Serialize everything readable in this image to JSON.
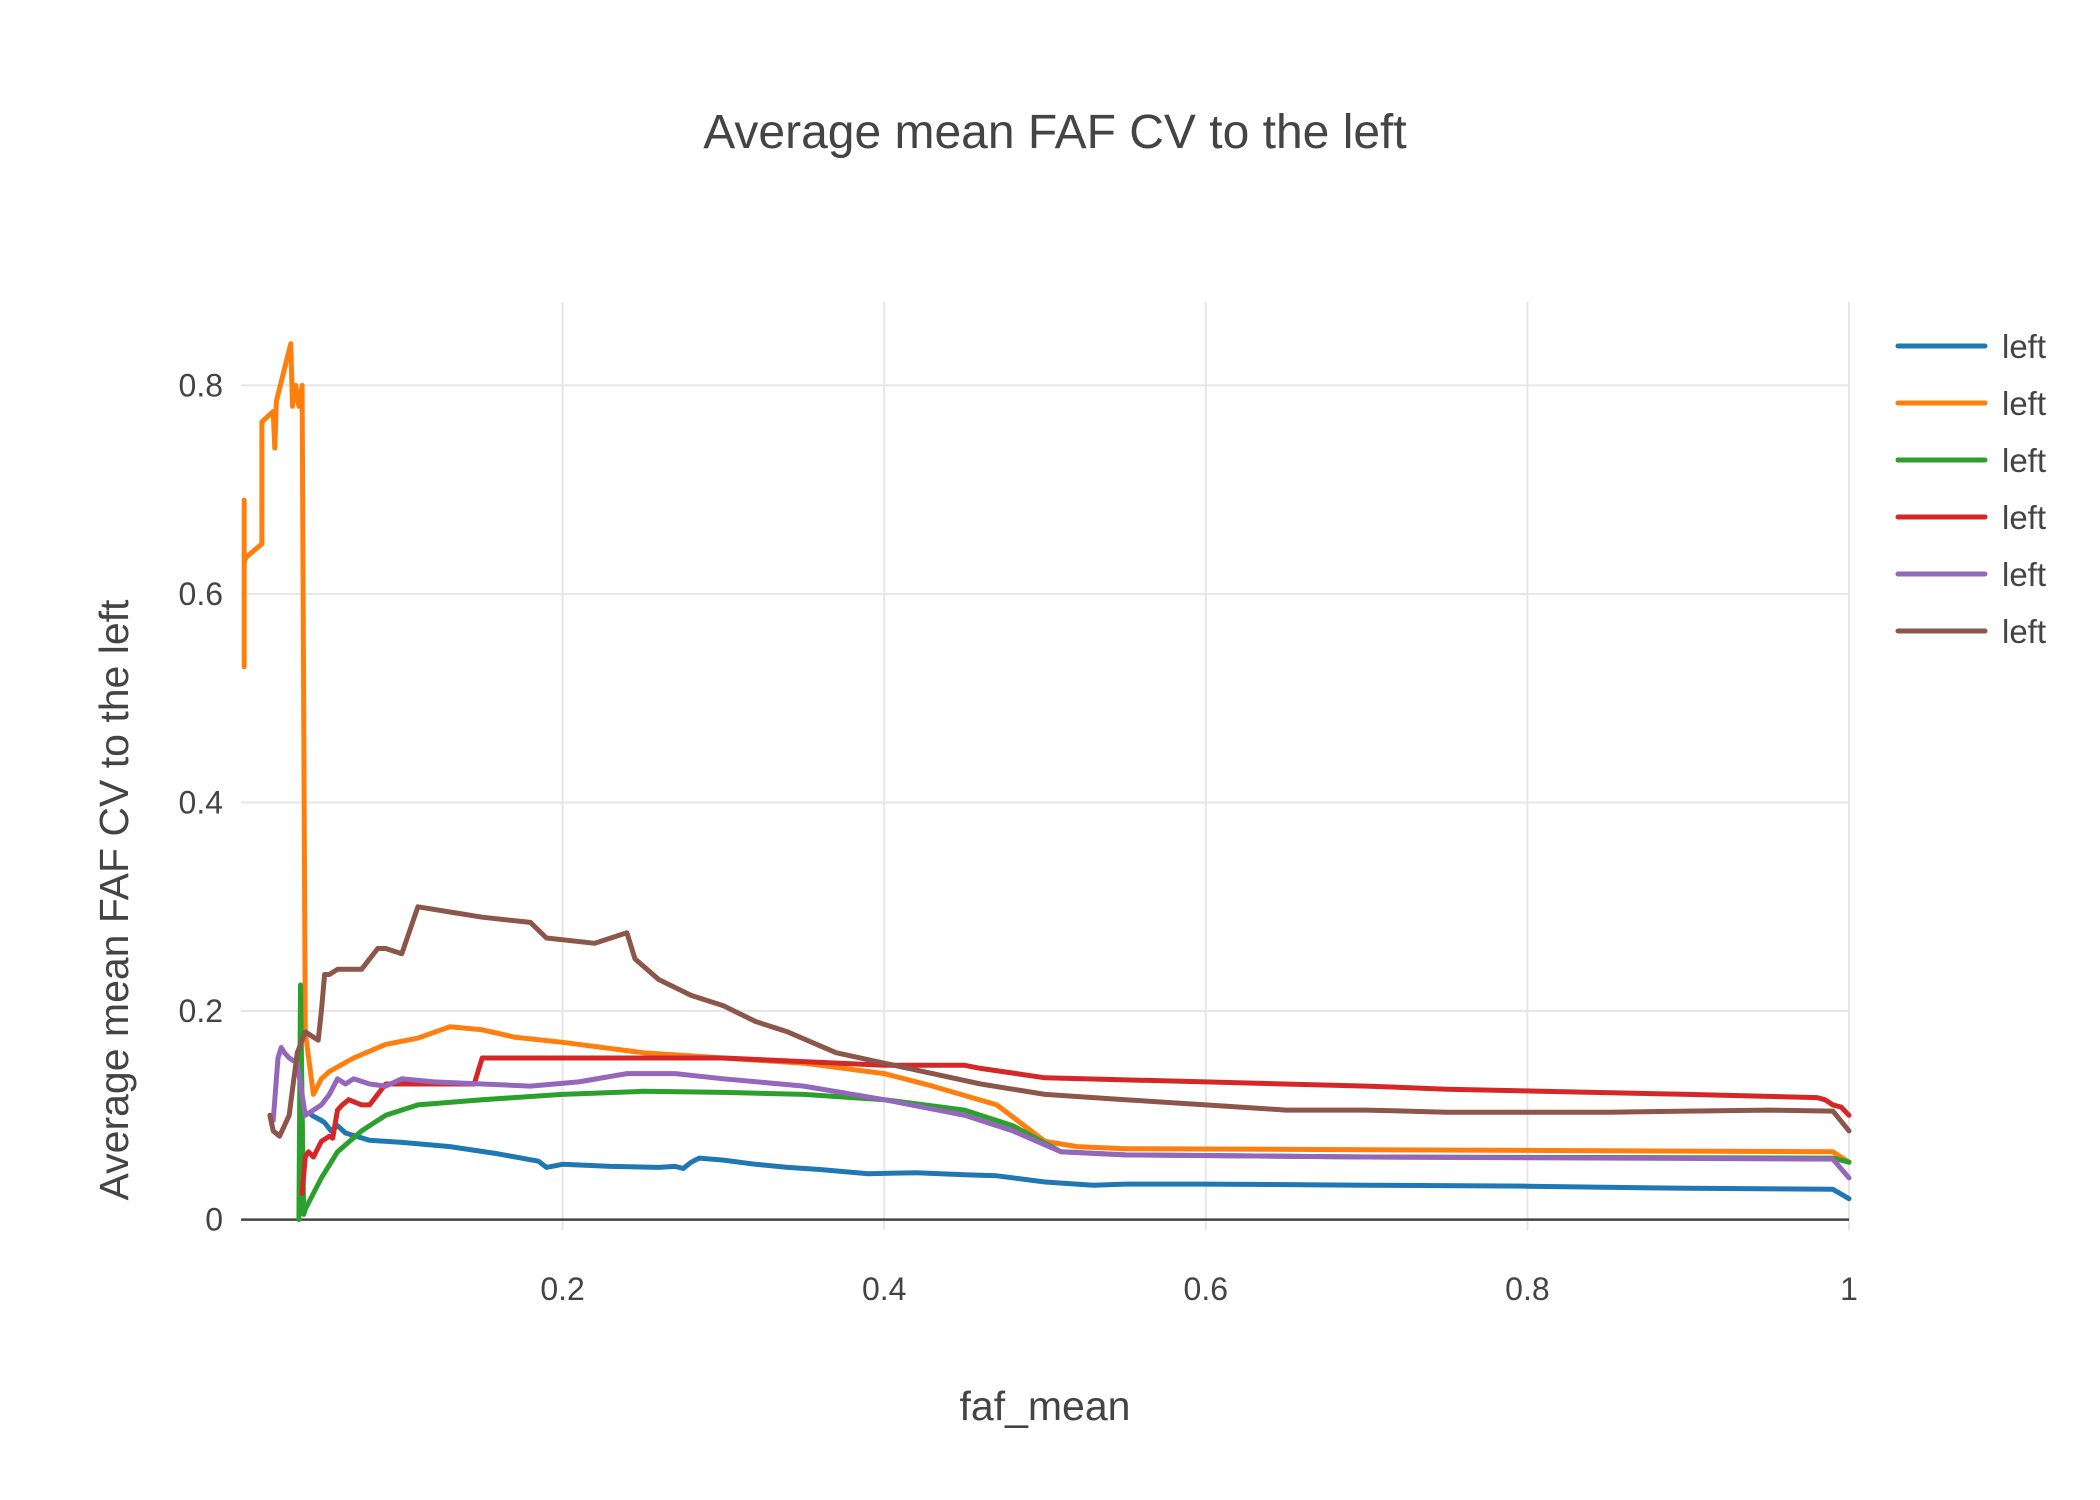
{
  "chart_data": {
    "type": "line",
    "title": "Average mean FAF CV to the left",
    "xlabel": "faf_mean",
    "ylabel": "Average mean FAF CV to the left",
    "xlim": [
      0,
      1
    ],
    "ylim": [
      -0.01,
      0.88
    ],
    "x_ticks": [
      0.2,
      0.4,
      0.6,
      0.8,
      1
    ],
    "x_tick_labels": [
      "0.2",
      "0.4",
      "0.6",
      "0.8",
      "1"
    ],
    "y_ticks": [
      0,
      0.2,
      0.4,
      0.6,
      0.8
    ],
    "y_tick_labels": [
      "0",
      "0.2",
      "0.4",
      "0.6",
      "0.8"
    ],
    "grid": true,
    "legend_position": "top-right",
    "series": [
      {
        "name": "left",
        "color": "#1f77b4",
        "x": [
          0.044,
          0.05,
          0.052,
          0.056,
          0.06,
          0.065,
          0.08,
          0.1,
          0.13,
          0.16,
          0.185,
          0.19,
          0.2,
          0.23,
          0.26,
          0.27,
          0.275,
          0.28,
          0.285,
          0.3,
          0.32,
          0.34,
          0.36,
          0.39,
          0.42,
          0.45,
          0.47,
          0.5,
          0.53,
          0.55,
          0.6,
          0.7,
          0.8,
          0.9,
          0.99,
          1.0
        ],
        "y": [
          0.1,
          0.095,
          0.093,
          0.085,
          0.09,
          0.083,
          0.076,
          0.074,
          0.07,
          0.063,
          0.056,
          0.05,
          0.053,
          0.051,
          0.05,
          0.051,
          0.049,
          0.055,
          0.059,
          0.057,
          0.053,
          0.05,
          0.048,
          0.044,
          0.045,
          0.043,
          0.042,
          0.036,
          0.033,
          0.034,
          0.034,
          0.033,
          0.032,
          0.03,
          0.029,
          0.02
        ]
      },
      {
        "name": "left",
        "color": "#ff7f0e",
        "x": [
          0.002,
          0.002,
          0.002,
          0.003,
          0.013,
          0.013,
          0.02,
          0.021,
          0.022,
          0.031,
          0.032,
          0.034,
          0.036,
          0.038,
          0.04,
          0.045,
          0.05,
          0.055,
          0.07,
          0.09,
          0.11,
          0.13,
          0.15,
          0.17,
          0.2,
          0.25,
          0.3,
          0.35,
          0.4,
          0.43,
          0.47,
          0.5,
          0.52,
          0.55,
          0.7,
          0.99,
          1.0
        ],
        "y": [
          0.53,
          0.69,
          0.63,
          0.635,
          0.648,
          0.765,
          0.775,
          0.74,
          0.785,
          0.84,
          0.78,
          0.8,
          0.78,
          0.8,
          0.18,
          0.12,
          0.135,
          0.142,
          0.155,
          0.168,
          0.174,
          0.185,
          0.182,
          0.175,
          0.17,
          0.16,
          0.155,
          0.15,
          0.14,
          0.128,
          0.11,
          0.075,
          0.07,
          0.068,
          0.067,
          0.065,
          0.055
        ]
      },
      {
        "name": "left",
        "color": "#2ca02c",
        "x": [
          0.036,
          0.037,
          0.038,
          0.039,
          0.04,
          0.05,
          0.06,
          0.075,
          0.09,
          0.11,
          0.15,
          0.2,
          0.25,
          0.3,
          0.35,
          0.4,
          0.45,
          0.48,
          0.51,
          0.55,
          0.7,
          0.99,
          1.0
        ],
        "y": [
          0.0,
          0.225,
          0.11,
          0.005,
          0.01,
          0.04,
          0.065,
          0.085,
          0.1,
          0.11,
          0.115,
          0.12,
          0.123,
          0.122,
          0.12,
          0.115,
          0.105,
          0.09,
          0.065,
          0.062,
          0.06,
          0.059,
          0.055
        ]
      },
      {
        "name": "left",
        "color": "#d62728",
        "x": [
          0.038,
          0.04,
          0.042,
          0.045,
          0.05,
          0.055,
          0.057,
          0.06,
          0.063,
          0.067,
          0.075,
          0.08,
          0.085,
          0.09,
          0.11,
          0.13,
          0.145,
          0.15,
          0.2,
          0.3,
          0.4,
          0.45,
          0.46,
          0.5,
          0.6,
          0.7,
          0.75,
          0.9,
          0.98,
          0.985,
          0.99,
          0.995,
          1.0
        ],
        "y": [
          0.025,
          0.06,
          0.065,
          0.06,
          0.075,
          0.08,
          0.078,
          0.105,
          0.11,
          0.115,
          0.11,
          0.11,
          0.12,
          0.13,
          0.13,
          0.13,
          0.13,
          0.155,
          0.155,
          0.155,
          0.148,
          0.148,
          0.145,
          0.136,
          0.132,
          0.128,
          0.125,
          0.12,
          0.117,
          0.115,
          0.11,
          0.108,
          0.1
        ]
      },
      {
        "name": "left",
        "color": "#9467bd",
        "x": [
          0.02,
          0.023,
          0.025,
          0.027,
          0.03,
          0.035,
          0.04,
          0.045,
          0.05,
          0.055,
          0.06,
          0.065,
          0.07,
          0.08,
          0.09,
          0.1,
          0.12,
          0.15,
          0.18,
          0.21,
          0.24,
          0.27,
          0.3,
          0.35,
          0.4,
          0.45,
          0.48,
          0.51,
          0.55,
          0.7,
          0.99,
          1.0
        ],
        "y": [
          0.095,
          0.155,
          0.165,
          0.16,
          0.155,
          0.15,
          0.1,
          0.105,
          0.11,
          0.12,
          0.135,
          0.13,
          0.135,
          0.13,
          0.128,
          0.135,
          0.132,
          0.13,
          0.128,
          0.132,
          0.14,
          0.14,
          0.135,
          0.128,
          0.115,
          0.1,
          0.085,
          0.065,
          0.062,
          0.06,
          0.058,
          0.04
        ]
      },
      {
        "name": "left",
        "color": "#8c564b",
        "x": [
          0.018,
          0.02,
          0.024,
          0.03,
          0.032,
          0.035,
          0.04,
          0.045,
          0.048,
          0.05,
          0.052,
          0.055,
          0.06,
          0.07,
          0.075,
          0.085,
          0.09,
          0.1,
          0.11,
          0.13,
          0.15,
          0.18,
          0.19,
          0.22,
          0.24,
          0.245,
          0.26,
          0.28,
          0.3,
          0.32,
          0.34,
          0.37,
          0.4,
          0.43,
          0.46,
          0.5,
          0.55,
          0.6,
          0.65,
          0.7,
          0.75,
          0.8,
          0.85,
          0.9,
          0.95,
          0.99,
          1.0
        ],
        "y": [
          0.1,
          0.085,
          0.08,
          0.1,
          0.125,
          0.16,
          0.18,
          0.175,
          0.172,
          0.2,
          0.235,
          0.235,
          0.24,
          0.24,
          0.24,
          0.26,
          0.26,
          0.255,
          0.3,
          0.295,
          0.29,
          0.285,
          0.27,
          0.265,
          0.275,
          0.25,
          0.23,
          0.215,
          0.205,
          0.19,
          0.18,
          0.16,
          0.15,
          0.14,
          0.13,
          0.12,
          0.115,
          0.11,
          0.105,
          0.105,
          0.103,
          0.103,
          0.103,
          0.104,
          0.105,
          0.104,
          0.085
        ]
      }
    ]
  }
}
